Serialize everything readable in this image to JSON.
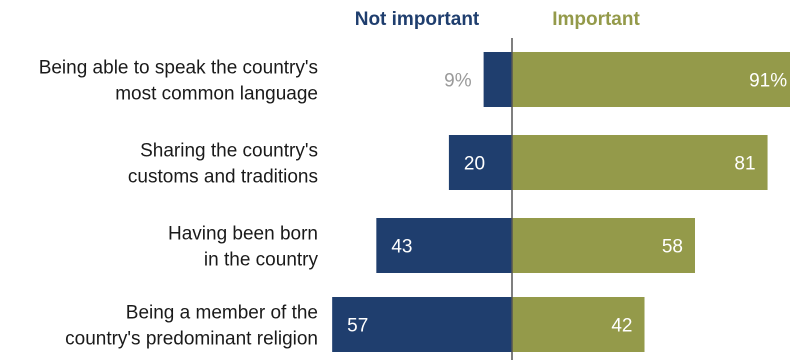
{
  "colors": {
    "not_important": "#1f3e6e",
    "important": "#949a4a",
    "axis": "#555555",
    "outside_label": "#9a9a9a",
    "inside_label": "#ffffff"
  },
  "legend": {
    "not_important": "Not important",
    "important": "Important"
  },
  "chart_data": {
    "type": "bar",
    "orientation": "horizontal-diverging",
    "categories": [
      [
        "Being able to speak the country's",
        "most common language"
      ],
      [
        "Sharing the country's",
        "customs and traditions"
      ],
      [
        "Having been born",
        "in the country"
      ],
      [
        "Being a member of the",
        "country's predominant religion"
      ]
    ],
    "series": [
      {
        "name": "Not important",
        "values": [
          9,
          20,
          43,
          57
        ],
        "labels": [
          "9%",
          "20",
          "43",
          "57"
        ],
        "direction": "left"
      },
      {
        "name": "Important",
        "values": [
          91,
          81,
          58,
          42
        ],
        "labels": [
          "91%",
          "81",
          "58",
          "42"
        ],
        "direction": "right"
      }
    ],
    "xlim": [
      -60,
      100
    ],
    "grid": false,
    "legend_position": "top"
  }
}
